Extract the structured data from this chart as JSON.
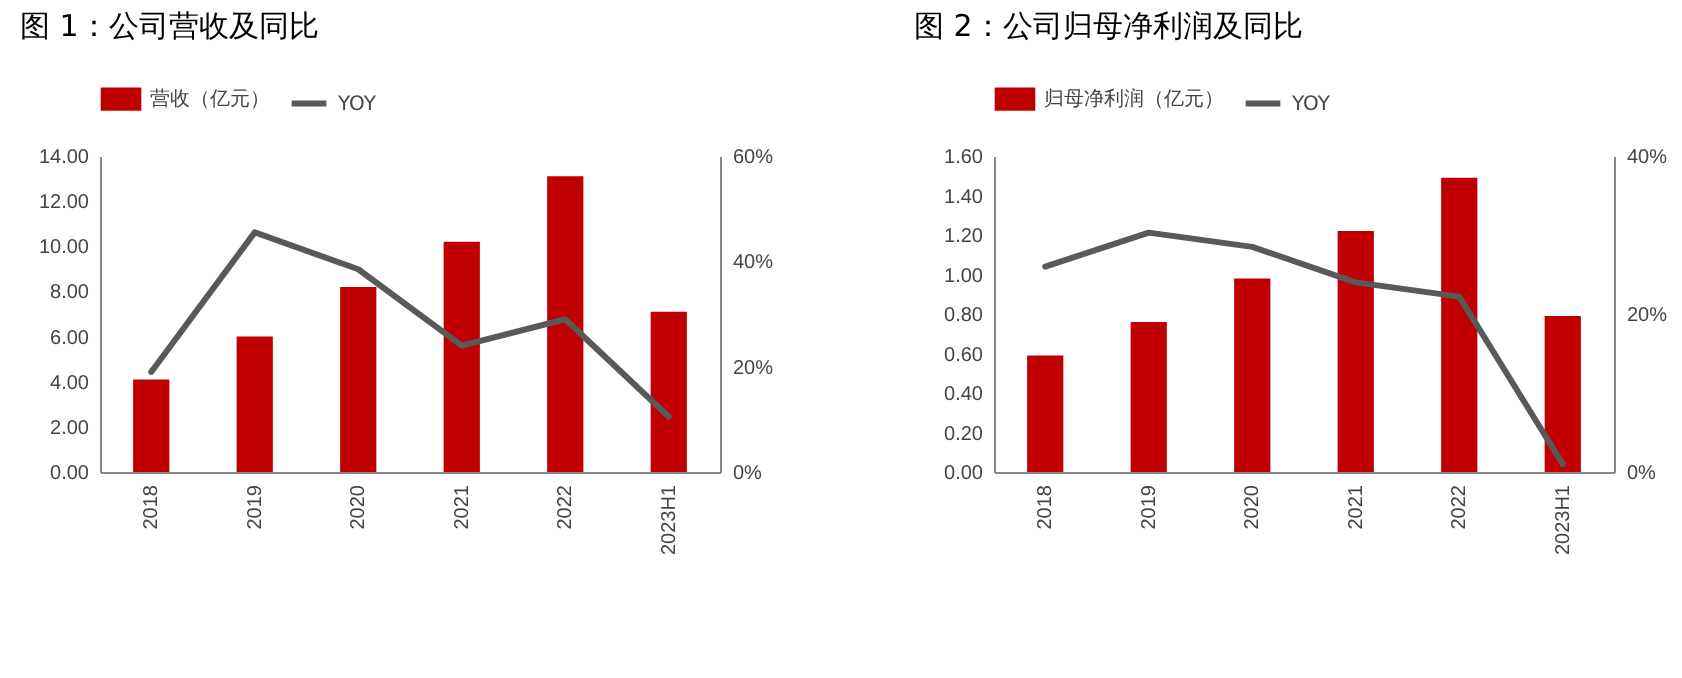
{
  "chart_data": [
    {
      "type": "bar",
      "title": "图 1：公司营收及同比",
      "categories": [
        "2018",
        "2019",
        "2020",
        "2021",
        "2022",
        "2023H1"
      ],
      "series": [
        {
          "name": "营收（亿元）",
          "color": "#c00000",
          "values": [
            4.1,
            6.0,
            8.2,
            10.2,
            13.1,
            7.1
          ]
        },
        {
          "name": "YOY",
          "type": "line",
          "axis": "y2",
          "color": "#595959",
          "values": [
            19,
            45.5,
            38.5,
            24,
            29,
            10.5
          ]
        }
      ],
      "ylim": [
        0,
        14
      ],
      "yticks": [
        {
          "value": 0,
          "label": "0.00"
        },
        {
          "value": 2,
          "label": "2.00"
        },
        {
          "value": 4,
          "label": "4.00"
        },
        {
          "value": 6,
          "label": "6.00"
        },
        {
          "value": 8,
          "label": "8.00"
        },
        {
          "value": 10,
          "label": "10.00"
        },
        {
          "value": 12,
          "label": "12.00"
        },
        {
          "value": 14,
          "label": "14.00"
        }
      ],
      "y2lim": [
        0,
        60
      ],
      "y2ticks": [
        {
          "value": 0,
          "label": "0%"
        },
        {
          "value": 20,
          "label": "20%"
        },
        {
          "value": 40,
          "label": "40%"
        },
        {
          "value": 60,
          "label": "60%"
        }
      ],
      "legend": "top",
      "grid": false
    },
    {
      "type": "bar",
      "title": "图 2：公司归母净利润及同比",
      "categories": [
        "2018",
        "2019",
        "2020",
        "2021",
        "2022",
        "2023H1"
      ],
      "series": [
        {
          "name": "归母净利润（亿元）",
          "color": "#c00000",
          "values": [
            0.59,
            0.76,
            0.98,
            1.22,
            1.49,
            0.79
          ]
        },
        {
          "name": "YOY",
          "type": "line",
          "axis": "y2",
          "color": "#595959",
          "values": [
            26,
            30.3,
            28.5,
            24,
            22.2,
            1
          ]
        }
      ],
      "ylim": [
        0,
        1.6
      ],
      "yticks": [
        {
          "value": 0,
          "label": "0.00"
        },
        {
          "value": 0.2,
          "label": "0.20"
        },
        {
          "value": 0.4,
          "label": "0.40"
        },
        {
          "value": 0.6,
          "label": "0.60"
        },
        {
          "value": 0.8,
          "label": "0.80"
        },
        {
          "value": 1.0,
          "label": "1.00"
        },
        {
          "value": 1.2,
          "label": "1.20"
        },
        {
          "value": 1.4,
          "label": "1.40"
        },
        {
          "value": 1.6,
          "label": "1.60"
        }
      ],
      "y2lim": [
        0,
        40
      ],
      "y2ticks": [
        {
          "value": 0,
          "label": "0%"
        },
        {
          "value": 20,
          "label": "20%"
        },
        {
          "value": 40,
          "label": "40%"
        }
      ],
      "legend": "top",
      "grid": false
    }
  ]
}
